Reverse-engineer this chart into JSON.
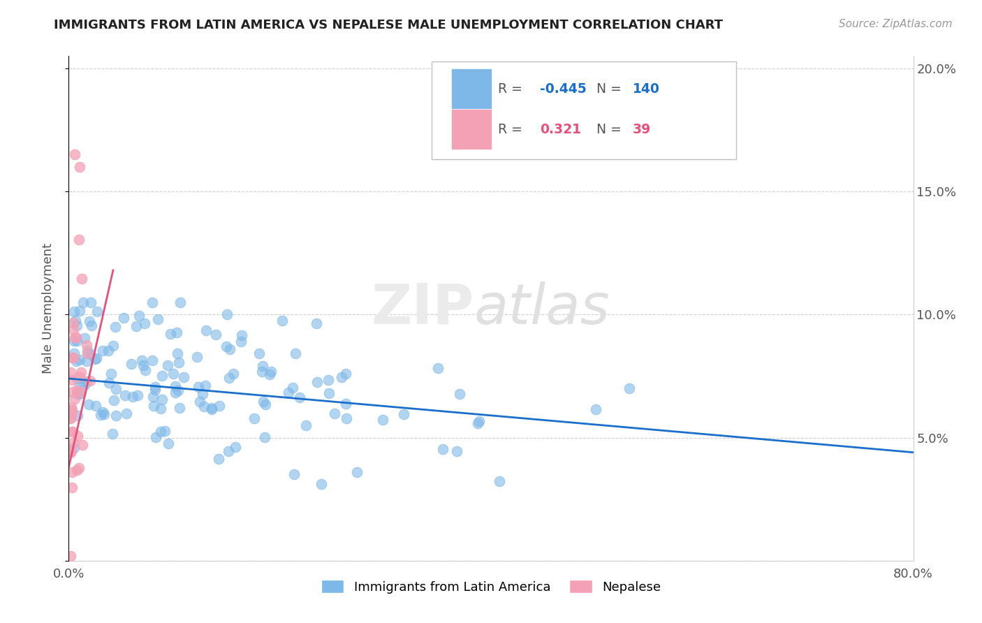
{
  "title": "IMMIGRANTS FROM LATIN AMERICA VS NEPALESE MALE UNEMPLOYMENT CORRELATION CHART",
  "source_text": "Source: ZipAtlas.com",
  "ylabel": "Male Unemployment",
  "xlim": [
    0.0,
    0.8
  ],
  "ylim": [
    0.0,
    0.205
  ],
  "legend1_r": "-0.445",
  "legend1_n": "140",
  "legend2_r": "0.321",
  "legend2_n": "39",
  "blue_color": "#7db8e8",
  "pink_color": "#f4a0b5",
  "trendline_blue": "#1a6fcc",
  "trendline_pink": "#e8507a",
  "blue_trend_x0": 0.0,
  "blue_trend_x1": 0.8,
  "blue_trend_y0": 0.074,
  "blue_trend_y1": 0.044,
  "pink_trend_x0": 0.0,
  "pink_trend_x1": 0.042,
  "pink_trend_y0": 0.038,
  "pink_trend_y1": 0.118,
  "watermark_zip": "ZIP",
  "watermark_atlas": "atlas",
  "legend_label1": "Immigrants from Latin America",
  "legend_label2": "Nepalese"
}
